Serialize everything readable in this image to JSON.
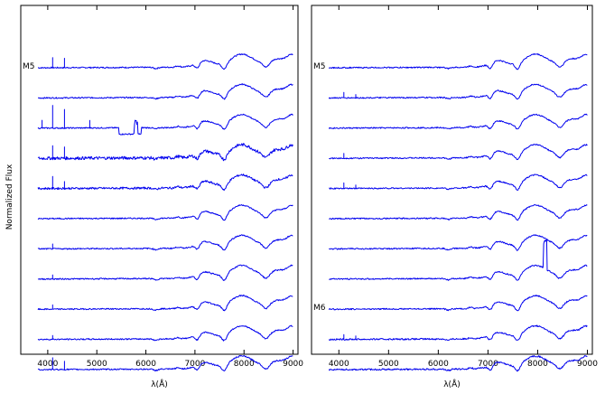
{
  "chart_data": [
    {
      "type": "line",
      "ylabel": "Normalized Flux",
      "xlabel": "λ(Å)",
      "xlim": [
        3450,
        9100
      ],
      "xticks": [
        4000,
        5000,
        6000,
        7000,
        8000,
        9000
      ],
      "tick_labels": [
        "4000",
        "5000",
        "6000",
        "7000",
        "8000",
        "9000"
      ],
      "grid": false,
      "series_count": 11,
      "spectra": [
        {
          "label": "M5",
          "line_spikes": [
            [
              4102,
              0.4
            ],
            [
              4340,
              0.35
            ]
          ],
          "noise": 0.05
        },
        {
          "label": "",
          "line_spikes": [],
          "noise": 0.05
        },
        {
          "label": "",
          "line_spikes": [
            [
              3889,
              0.3
            ],
            [
              4102,
              0.9
            ],
            [
              4340,
              0.75
            ],
            [
              4861,
              0.3
            ]
          ],
          "noise": 0.05,
          "artifact": {
            "start": 5450,
            "end": 5900,
            "depth": 0.25,
            "spike_at": 5800,
            "spike_height": 0.6
          }
        },
        {
          "label": "",
          "line_spikes": [
            [
              4102,
              0.55
            ],
            [
              4340,
              0.45
            ]
          ],
          "noise": 0.12
        },
        {
          "label": "",
          "line_spikes": [
            [
              4102,
              0.5
            ],
            [
              4340,
              0.3
            ]
          ],
          "noise": 0.08
        },
        {
          "label": "",
          "line_spikes": [],
          "noise": 0.05
        },
        {
          "label": "",
          "line_spikes": [
            [
              4102,
              0.2
            ]
          ],
          "noise": 0.05
        },
        {
          "label": "",
          "line_spikes": [
            [
              4102,
              0.15
            ]
          ],
          "noise": 0.05
        },
        {
          "label": "",
          "line_spikes": [
            [
              4102,
              0.15
            ]
          ],
          "noise": 0.05
        },
        {
          "label": "",
          "line_spikes": [
            [
              4102,
              0.15
            ]
          ],
          "noise": 0.05
        },
        {
          "label": "",
          "line_spikes": [
            [
              4102,
              0.45
            ],
            [
              4340,
              0.35
            ]
          ],
          "noise": 0.05
        }
      ]
    },
    {
      "type": "line",
      "ylabel": "",
      "xlabel": "λ(Å)",
      "xlim": [
        3450,
        9100
      ],
      "xticks": [
        4000,
        5000,
        6000,
        7000,
        8000,
        9000
      ],
      "tick_labels": [
        "4000",
        "5000",
        "6000",
        "7000",
        "8000",
        "9000"
      ],
      "grid": false,
      "series_count": 11,
      "spectra": [
        {
          "label": "M5",
          "line_spikes": [],
          "noise": 0.05
        },
        {
          "label": "",
          "line_spikes": [
            [
              4102,
              0.2
            ],
            [
              4340,
              0.15
            ]
          ],
          "noise": 0.05
        },
        {
          "label": "",
          "line_spikes": [],
          "noise": 0.05
        },
        {
          "label": "",
          "line_spikes": [
            [
              4102,
              0.2
            ]
          ],
          "noise": 0.05
        },
        {
          "label": "",
          "line_spikes": [
            [
              4102,
              0.2
            ],
            [
              4340,
              0.15
            ]
          ],
          "noise": 0.05
        },
        {
          "label": "",
          "line_spikes": [],
          "noise": 0.05
        },
        {
          "label": "",
          "line_spikes": [],
          "noise": 0.05
        },
        {
          "label": "",
          "line_spikes": [],
          "noise": 0.05,
          "artifact": {
            "start": 8100,
            "end": 8200,
            "depth": 0,
            "spike_at": 8150,
            "spike_height": 1.3
          }
        },
        {
          "label": "M6",
          "line_spikes": [],
          "noise": 0.05
        },
        {
          "label": "",
          "line_spikes": [
            [
              4102,
              0.2
            ],
            [
              4340,
              0.15
            ]
          ],
          "noise": 0.06
        },
        {
          "label": "",
          "line_spikes": [],
          "noise": 0.06
        }
      ]
    }
  ]
}
